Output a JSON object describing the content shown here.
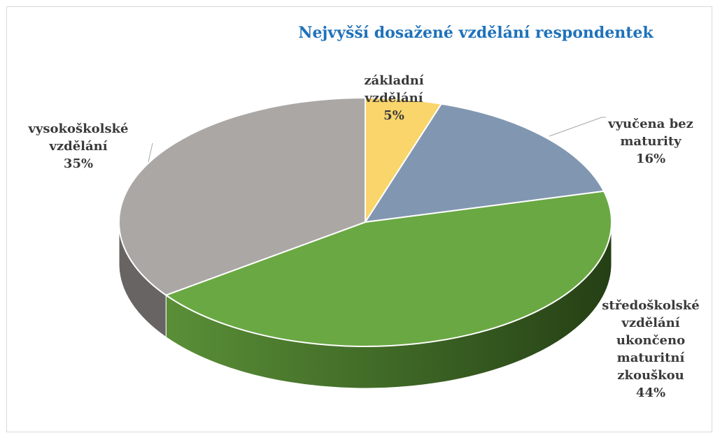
{
  "chart_data": {
    "type": "pie",
    "title": "Nejvyšší dosažené vzdělání respondentek",
    "categories": [
      "základní vzdělání",
      "vyučena bez maturity",
      "středoškolské vzdělání ukončeno maturitní zkouškou",
      "vysokoškolské vzdělání"
    ],
    "values": [
      5,
      16,
      44,
      35
    ],
    "value_labels": [
      "5%",
      "16%",
      "44%",
      "35%"
    ],
    "colors": [
      "#f9d56b",
      "#8197b1",
      "#6aa843",
      "#aba7a5"
    ]
  }
}
